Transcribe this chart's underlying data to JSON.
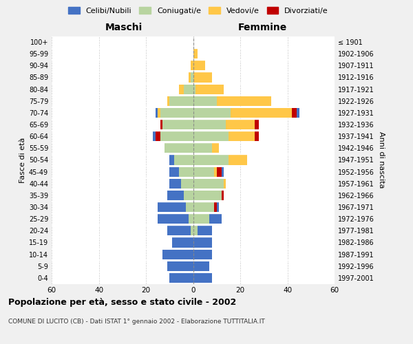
{
  "age_groups": [
    "100+",
    "95-99",
    "90-94",
    "85-89",
    "80-84",
    "75-79",
    "70-74",
    "65-69",
    "60-64",
    "55-59",
    "50-54",
    "45-49",
    "40-44",
    "35-39",
    "30-34",
    "25-29",
    "20-24",
    "15-19",
    "10-14",
    "5-9",
    "0-4"
  ],
  "birth_years": [
    "≤ 1901",
    "1902-1906",
    "1907-1911",
    "1912-1916",
    "1917-1921",
    "1922-1926",
    "1927-1931",
    "1932-1936",
    "1937-1941",
    "1942-1946",
    "1947-1951",
    "1952-1956",
    "1957-1961",
    "1962-1966",
    "1967-1971",
    "1972-1976",
    "1977-1981",
    "1982-1986",
    "1987-1991",
    "1992-1996",
    "1997-2001"
  ],
  "maschi_celibi": [
    0,
    0,
    0,
    0,
    0,
    0,
    1,
    0,
    1,
    0,
    2,
    4,
    5,
    7,
    12,
    13,
    10,
    9,
    13,
    11,
    10
  ],
  "maschi_coniugati": [
    0,
    0,
    0,
    1,
    4,
    10,
    14,
    13,
    14,
    12,
    8,
    6,
    5,
    4,
    3,
    2,
    1,
    0,
    0,
    0,
    0
  ],
  "maschi_vedovi": [
    0,
    0,
    1,
    1,
    2,
    1,
    1,
    0,
    0,
    0,
    0,
    0,
    0,
    0,
    0,
    0,
    0,
    0,
    0,
    0,
    0
  ],
  "maschi_divorziati": [
    0,
    0,
    0,
    0,
    0,
    0,
    0,
    1,
    2,
    0,
    0,
    0,
    0,
    0,
    0,
    0,
    0,
    0,
    0,
    0,
    0
  ],
  "femmine_nubili": [
    0,
    0,
    0,
    0,
    0,
    0,
    1,
    0,
    0,
    0,
    0,
    1,
    0,
    0,
    1,
    5,
    6,
    8,
    8,
    7,
    8
  ],
  "femmine_coniugate": [
    0,
    0,
    0,
    0,
    1,
    10,
    16,
    14,
    15,
    8,
    15,
    9,
    13,
    12,
    9,
    7,
    2,
    0,
    0,
    0,
    0
  ],
  "femmine_vedove": [
    0,
    2,
    5,
    8,
    12,
    23,
    26,
    12,
    11,
    3,
    8,
    1,
    1,
    0,
    0,
    0,
    0,
    0,
    0,
    0,
    0
  ],
  "femmine_divorziate": [
    0,
    0,
    0,
    0,
    0,
    0,
    2,
    2,
    2,
    0,
    0,
    2,
    0,
    1,
    1,
    0,
    0,
    0,
    0,
    0,
    0
  ],
  "color_celibi": "#4472c4",
  "color_coniugati": "#b8d4a0",
  "color_vedovi": "#ffc748",
  "color_divorziati": "#c00000",
  "title": "Popolazione per età, sesso e stato civile - 2002",
  "subtitle": "COMUNE DI LUCITO (CB) - Dati ISTAT 1° gennaio 2002 - Elaborazione TUTTITALIA.IT",
  "label_maschi": "Maschi",
  "label_femmine": "Femmine",
  "ylabel_left": "Fasce di età",
  "ylabel_right": "Anni di nascita",
  "legend_labels": [
    "Celibi/Nubili",
    "Coniugati/e",
    "Vedovi/e",
    "Divorziati/e"
  ],
  "xlim": 60,
  "bg_color": "#f0f0f0",
  "plot_bg": "#ffffff"
}
